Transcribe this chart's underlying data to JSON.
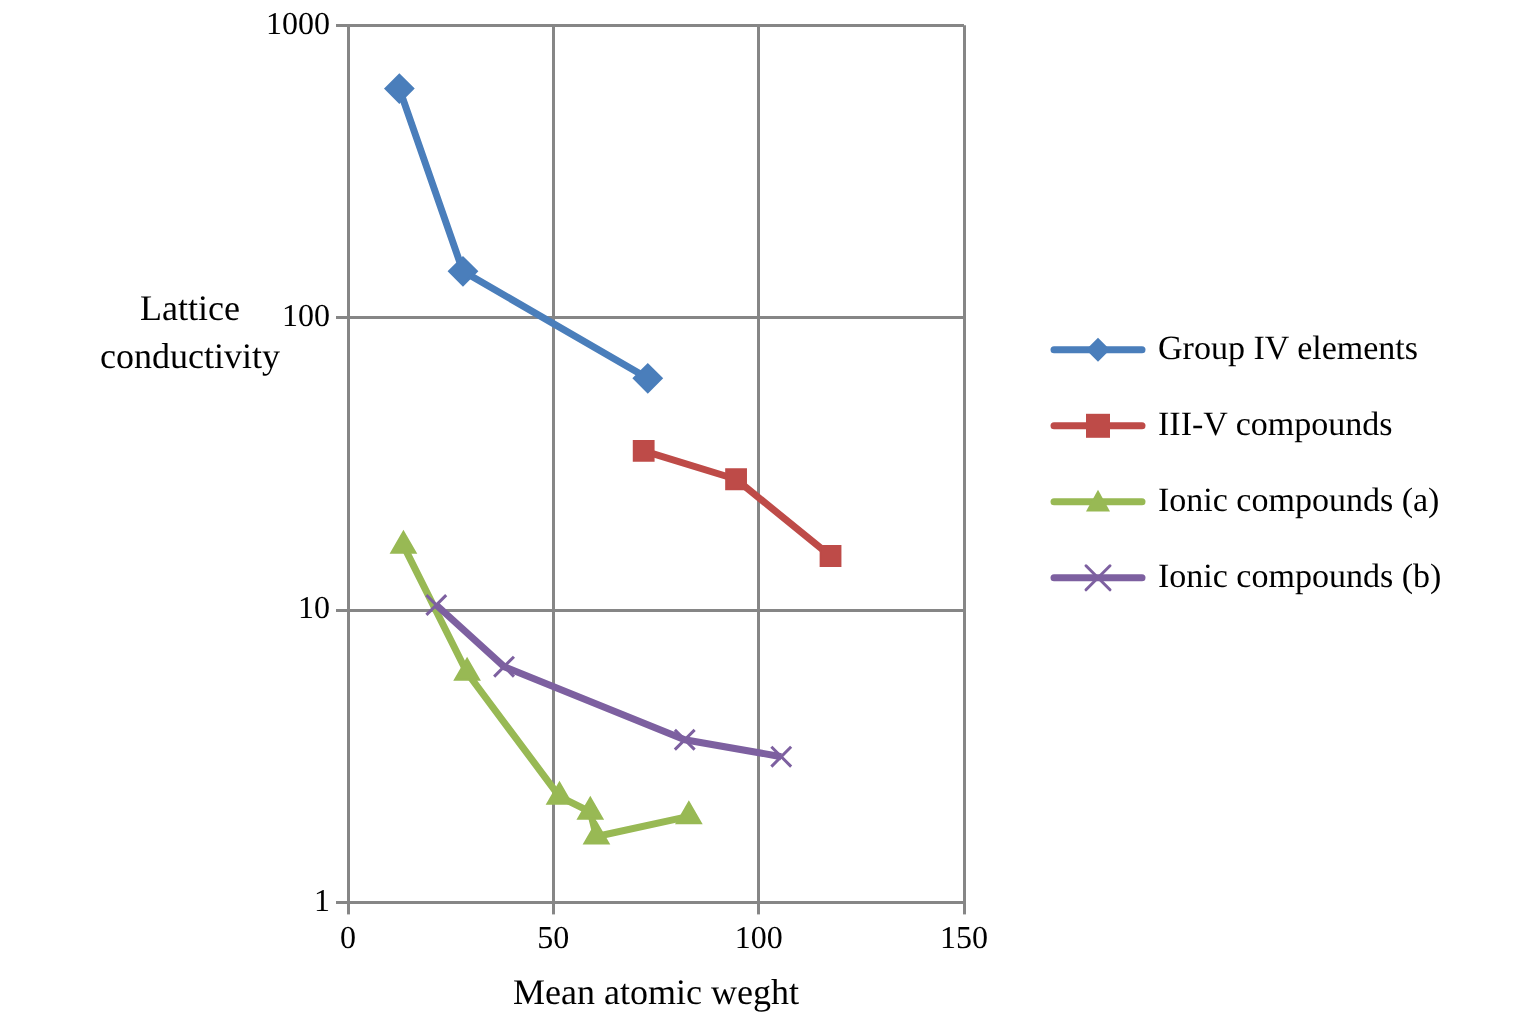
{
  "chart_data": {
    "type": "line",
    "xlabel": "Mean atomic weght",
    "ylabel": "Lattice conductivity",
    "log": "y",
    "xlim": [
      0,
      150
    ],
    "xticks": [
      0,
      50,
      100,
      150
    ],
    "ylim": [
      1,
      1000
    ],
    "yticks": [
      1,
      10,
      100,
      1000
    ],
    "grid": true,
    "legend": "right",
    "series": [
      {
        "name": "Group IV elements",
        "color": "#4a7ebb",
        "marker": "diamond",
        "x": [
          12.5,
          28,
          73
        ],
        "values": [
          607,
          144,
          62
        ]
      },
      {
        "name": "III-V compounds",
        "color": "#be4b48",
        "marker": "square",
        "x": [
          72,
          94.5,
          117.5
        ],
        "values": [
          35,
          28,
          15.3
        ]
      },
      {
        "name": "Ionic compounds (a)",
        "color": "#98b954",
        "marker": "triangle",
        "x": [
          13.5,
          29,
          51.5,
          59,
          60.5,
          83
        ],
        "values": [
          16.6,
          6.1,
          2.3,
          2.04,
          1.68,
          1.97
        ]
      },
      {
        "name": "Ionic compounds (b)",
        "color": "#7d60a0",
        "marker": "cross",
        "x": [
          21.5,
          38,
          82,
          105.5
        ],
        "values": [
          10.4,
          6.4,
          3.6,
          3.15
        ]
      }
    ]
  }
}
